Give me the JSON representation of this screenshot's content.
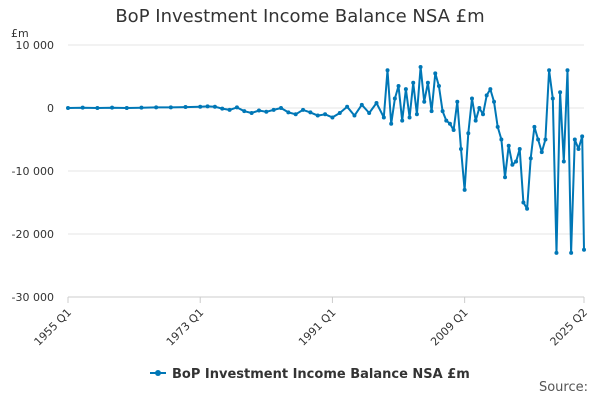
{
  "chart_data": {
    "type": "line",
    "title": "BoP Investment Income Balance NSA £m",
    "unit_label": "£m",
    "xlabel": "",
    "ylabel": "",
    "ylim": [
      -30000,
      10000
    ],
    "y_ticks": [
      10000,
      0,
      -10000,
      -20000,
      -30000
    ],
    "y_tick_labels": [
      "10 000",
      "0",
      "-10 000",
      "-20 000",
      "-30 000"
    ],
    "x_ticks": [
      "1955 Q1",
      "1973 Q1",
      "1991 Q1",
      "2009 Q1",
      "2025 Q2"
    ],
    "grid": true,
    "legend": "bottom-center",
    "source_label": "Source:",
    "colors": {
      "series": "#0077b6",
      "grid": "#e6e6e6",
      "axis": "#cccccc"
    },
    "series": [
      {
        "name": "BoP Investment Income Balance NSA £m",
        "points": [
          [
            "1955 Q1",
            0
          ],
          [
            "1957 Q1",
            50
          ],
          [
            "1959 Q1",
            0
          ],
          [
            "1961 Q1",
            50
          ],
          [
            "1963 Q1",
            0
          ],
          [
            "1965 Q1",
            50
          ],
          [
            "1967 Q1",
            100
          ],
          [
            "1969 Q1",
            100
          ],
          [
            "1971 Q1",
            150
          ],
          [
            "1973 Q1",
            200
          ],
          [
            "1974 Q1",
            250
          ],
          [
            "1975 Q1",
            200
          ],
          [
            "1976 Q1",
            -100
          ],
          [
            "1977 Q1",
            -300
          ],
          [
            "1978 Q1",
            100
          ],
          [
            "1979 Q1",
            -500
          ],
          [
            "1980 Q1",
            -800
          ],
          [
            "1981 Q1",
            -400
          ],
          [
            "1982 Q1",
            -600
          ],
          [
            "1983 Q1",
            -300
          ],
          [
            "1984 Q1",
            0
          ],
          [
            "1985 Q1",
            -700
          ],
          [
            "1986 Q1",
            -1000
          ],
          [
            "1987 Q1",
            -300
          ],
          [
            "1988 Q1",
            -700
          ],
          [
            "1989 Q1",
            -1200
          ],
          [
            "1990 Q1",
            -1000
          ],
          [
            "1991 Q1",
            -1500
          ],
          [
            "1992 Q1",
            -800
          ],
          [
            "1993 Q1",
            200
          ],
          [
            "1994 Q1",
            -1200
          ],
          [
            "1995 Q1",
            500
          ],
          [
            "1996 Q1",
            -800
          ],
          [
            "1997 Q1",
            800
          ],
          [
            "1998 Q1",
            -1500
          ],
          [
            "1998 Q3",
            6000
          ],
          [
            "1999 Q1",
            -2500
          ],
          [
            "1999 Q3",
            1500
          ],
          [
            "2000 Q1",
            3500
          ],
          [
            "2000 Q3",
            -2000
          ],
          [
            "2001 Q1",
            3000
          ],
          [
            "2001 Q3",
            -1500
          ],
          [
            "2002 Q1",
            4000
          ],
          [
            "2002 Q3",
            -1000
          ],
          [
            "2003 Q1",
            6500
          ],
          [
            "2003 Q3",
            1000
          ],
          [
            "2004 Q1",
            4000
          ],
          [
            "2004 Q3",
            -500
          ],
          [
            "2005 Q1",
            5500
          ],
          [
            "2005 Q3",
            3500
          ],
          [
            "2006 Q1",
            -500
          ],
          [
            "2006 Q3",
            -2000
          ],
          [
            "2007 Q1",
            -2500
          ],
          [
            "2007 Q3",
            -3500
          ],
          [
            "2008 Q1",
            1000
          ],
          [
            "2008 Q3",
            -6500
          ],
          [
            "2009 Q1",
            -13000
          ],
          [
            "2009 Q3",
            -4000
          ],
          [
            "2010 Q1",
            1500
          ],
          [
            "2010 Q3",
            -2000
          ],
          [
            "2011 Q1",
            0
          ],
          [
            "2011 Q3",
            -1000
          ],
          [
            "2012 Q1",
            2000
          ],
          [
            "2012 Q3",
            3000
          ],
          [
            "2013 Q1",
            1000
          ],
          [
            "2013 Q3",
            -3000
          ],
          [
            "2014 Q1",
            -5000
          ],
          [
            "2014 Q3",
            -11000
          ],
          [
            "2015 Q1",
            -6000
          ],
          [
            "2015 Q3",
            -9000
          ],
          [
            "2016 Q1",
            -8500
          ],
          [
            "2016 Q3",
            -6500
          ],
          [
            "2017 Q1",
            -15000
          ],
          [
            "2017 Q3",
            -16000
          ],
          [
            "2018 Q1",
            -8000
          ],
          [
            "2018 Q3",
            -3000
          ],
          [
            "2019 Q1",
            -5000
          ],
          [
            "2019 Q3",
            -7000
          ],
          [
            "2020 Q1",
            -5000
          ],
          [
            "2020 Q3",
            6000
          ],
          [
            "2021 Q1",
            1500
          ],
          [
            "2021 Q3",
            -23000
          ],
          [
            "2022 Q1",
            2500
          ],
          [
            "2022 Q3",
            -8500
          ],
          [
            "2023 Q1",
            6000
          ],
          [
            "2023 Q3",
            -23000
          ],
          [
            "2024 Q1",
            -5000
          ],
          [
            "2024 Q3",
            -6500
          ],
          [
            "2025 Q1",
            -4500
          ],
          [
            "2025 Q2",
            -22500
          ]
        ]
      }
    ]
  }
}
